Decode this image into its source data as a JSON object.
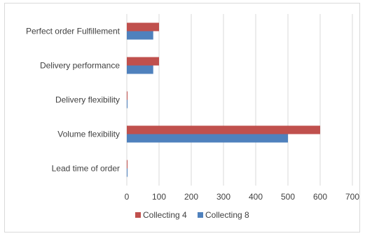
{
  "chart_data": {
    "type": "bar",
    "orientation": "horizontal",
    "categories": [
      "Perfect order Fulfillement",
      "Delivery performance",
      "Delivery flexibility",
      "Volume flexibility",
      "Lead time of order"
    ],
    "series": [
      {
        "name": "Collecting 4",
        "color": "#c0504d",
        "values": [
          100,
          100,
          2,
          600,
          2
        ]
      },
      {
        "name": "Collecting 8",
        "color": "#4f81bd",
        "values": [
          82,
          82,
          2,
          500,
          2
        ]
      }
    ],
    "xticks": [
      "0",
      "100",
      "200",
      "300",
      "400",
      "500",
      "600",
      "700"
    ],
    "xlim": [
      0,
      700
    ],
    "grid": "vertical",
    "legend": "bottom"
  }
}
